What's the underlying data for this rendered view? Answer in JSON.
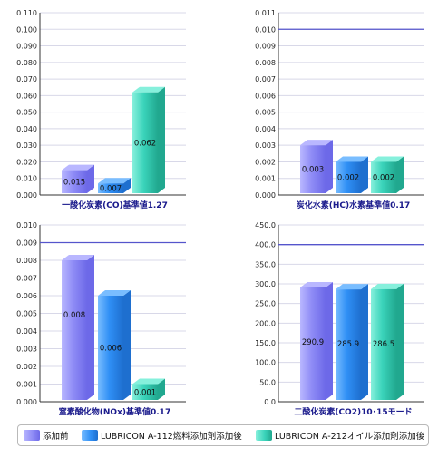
{
  "colors": {
    "series": [
      "#8f8cf6",
      "#2f8ff5",
      "#3ad3ba"
    ],
    "series_top": [
      "#b9b7ff",
      "#79bdff",
      "#86f0dc"
    ],
    "series_side": [
      "#6d69e8",
      "#1e6fcf",
      "#21a88f"
    ],
    "reference_line": "#5555cc",
    "gridline": "#d8d8e8",
    "axis": "#333333",
    "title_text": "#1a1a8c"
  },
  "legend": {
    "items": [
      {
        "label": "添加前",
        "series_index": 0
      },
      {
        "label": "LUBRICON A-112燃料添加剤添加後",
        "series_index": 1
      },
      {
        "label": "LUBRICON A-212オイル添加剤添加後",
        "series_index": 2
      }
    ]
  },
  "chart_data": [
    {
      "type": "bar",
      "title": "一酸化炭素(CO)基準値1.27",
      "ylim": [
        0,
        0.11
      ],
      "yticks": [
        "0.000",
        "0.010",
        "0.020",
        "0.030",
        "0.040",
        "0.050",
        "0.060",
        "0.070",
        "0.080",
        "0.090",
        "0.100",
        "0.110"
      ],
      "series": [
        {
          "values": [
            0.015
          ],
          "label": "0.015"
        },
        {
          "values": [
            0.007
          ],
          "label": "0.007"
        },
        {
          "values": [
            0.062
          ],
          "label": "0.062"
        }
      ],
      "reference_line": null,
      "grid": true
    },
    {
      "type": "bar",
      "title": "炭化水素(HC)水素基準値0.17",
      "ylim": [
        0,
        0.011
      ],
      "yticks": [
        "0.000",
        "0.001",
        "0.002",
        "0.003",
        "0.004",
        "0.005",
        "0.006",
        "0.007",
        "0.008",
        "0.009",
        "0.010",
        "0.011"
      ],
      "series": [
        {
          "values": [
            0.003
          ],
          "label": "0.003"
        },
        {
          "values": [
            0.002
          ],
          "label": "0.002"
        },
        {
          "values": [
            0.002
          ],
          "label": "0.002"
        }
      ],
      "reference_line": 0.01,
      "grid": true
    },
    {
      "type": "bar",
      "title": "窒素酸化物(NOx)基準値0.17",
      "ylim": [
        0,
        0.01
      ],
      "yticks": [
        "0.000",
        "0.001",
        "0.002",
        "0.003",
        "0.004",
        "0.005",
        "0.006",
        "0.007",
        "0.008",
        "0.009",
        "0.010"
      ],
      "series": [
        {
          "values": [
            0.008
          ],
          "label": "0.008"
        },
        {
          "values": [
            0.006
          ],
          "label": "0.006"
        },
        {
          "values": [
            0.001
          ],
          "label": "0.001"
        }
      ],
      "reference_line": 0.009,
      "grid": true
    },
    {
      "type": "bar",
      "title": "二酸化炭素(CO2)10･15モード",
      "ylim": [
        0,
        450
      ],
      "yticks": [
        "0.0",
        "50.0",
        "100.0",
        "150.0",
        "200.0",
        "250.0",
        "300.0",
        "350.0",
        "400.0",
        "450.0"
      ],
      "series": [
        {
          "values": [
            290.9
          ],
          "label": "290.9"
        },
        {
          "values": [
            285.9
          ],
          "label": "285.9"
        },
        {
          "values": [
            286.5
          ],
          "label": "286.5"
        }
      ],
      "reference_line": 400,
      "grid": true
    }
  ]
}
